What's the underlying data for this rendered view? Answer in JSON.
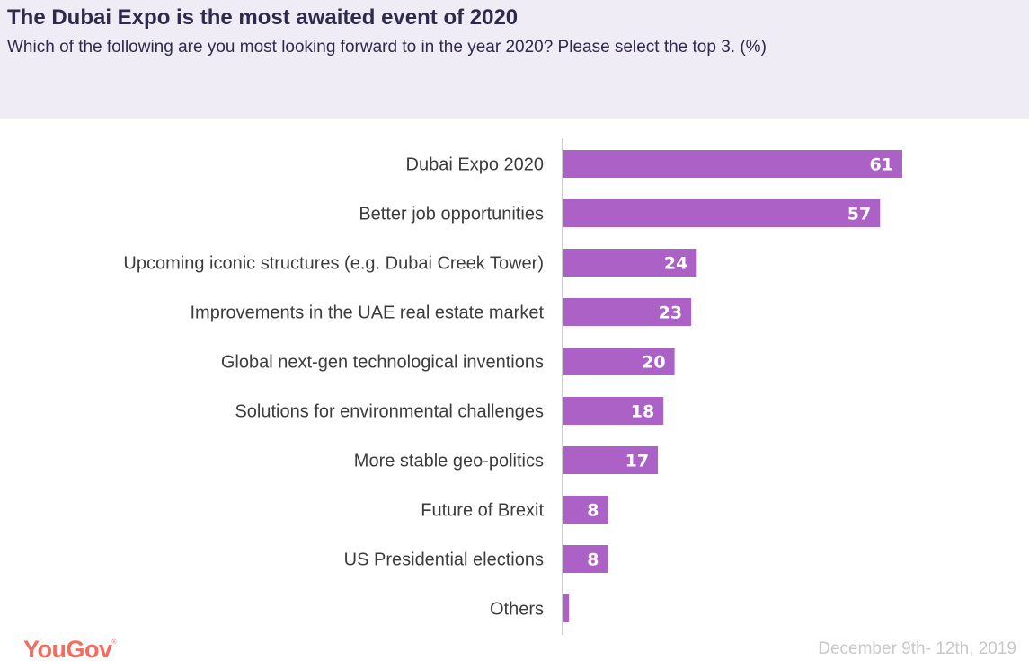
{
  "header": {
    "title": "The Dubai Expo is the most awaited event of 2020",
    "subtitle": "Which of the following are you most looking forward to in the year 2020? Please select the top 3. (%)"
  },
  "footer": {
    "logo": "YouGov",
    "logo_mark": "®",
    "date": "December 9th- 12th, 2019"
  },
  "colors": {
    "bar": "#ab61c5",
    "header_bg": "#efecf6",
    "title": "#2e2a4a",
    "label": "#3c3c3c",
    "axis": "#cccccc",
    "logo": "#f56b5e"
  },
  "chart_data": {
    "type": "bar",
    "orientation": "horizontal",
    "title": "The Dubai Expo is the most awaited event of 2020",
    "subtitle": "Which of the following are you most looking forward to in the year 2020? Please select the top 3. (%)",
    "xlabel": "",
    "ylabel": "",
    "xlim": [
      0,
      80
    ],
    "grid": false,
    "categories": [
      "Dubai Expo 2020",
      "Better job opportunities",
      "Upcoming iconic structures (e.g. Dubai Creek Tower)",
      "Improvements in the UAE real estate market",
      "Global next-gen technological inventions",
      "Solutions for environmental challenges",
      "More stable geo-politics",
      "Future of Brexit",
      "US Presidential elections",
      "Others"
    ],
    "values": [
      61,
      57,
      24,
      23,
      20,
      18,
      17,
      8,
      8,
      1
    ],
    "data_labels": [
      "61",
      "57",
      "24",
      "23",
      "20",
      "18",
      "17",
      "8",
      "8",
      ""
    ]
  }
}
